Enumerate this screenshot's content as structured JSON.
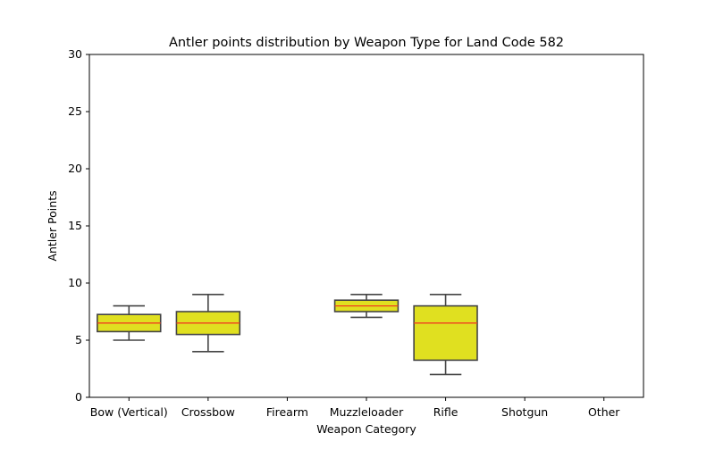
{
  "chart_data": {
    "type": "box",
    "title": "Antler points distribution by Weapon Type for Land Code 582",
    "xlabel": "Weapon Category",
    "ylabel": "Antler Points",
    "ylim": [
      0,
      30
    ],
    "yticks": [
      0,
      5,
      10,
      15,
      20,
      25,
      30
    ],
    "categories": [
      "Bow (Vertical)",
      "Crossbow",
      "Firearm",
      "Muzzleloader",
      "Rifle",
      "Shotgun",
      "Other"
    ],
    "boxes": [
      {
        "category": "Bow (Vertical)",
        "whisker_low": 5,
        "q1": 5.75,
        "median": 6.5,
        "q3": 7.25,
        "whisker_high": 8
      },
      {
        "category": "Crossbow",
        "whisker_low": 4,
        "q1": 5.5,
        "median": 6.5,
        "q3": 7.5,
        "whisker_high": 9
      },
      {
        "category": "Firearm",
        "whisker_low": null,
        "q1": null,
        "median": null,
        "q3": null,
        "whisker_high": null
      },
      {
        "category": "Muzzleloader",
        "whisker_low": 7,
        "q1": 7.5,
        "median": 8,
        "q3": 8.5,
        "whisker_high": 9
      },
      {
        "category": "Rifle",
        "whisker_low": 2,
        "q1": 3.25,
        "median": 6.5,
        "q3": 8,
        "whisker_high": 9
      },
      {
        "category": "Shotgun",
        "whisker_low": null,
        "q1": null,
        "median": null,
        "q3": null,
        "whisker_high": null
      },
      {
        "category": "Other",
        "whisker_low": null,
        "q1": null,
        "median": null,
        "q3": null,
        "whisker_high": null
      }
    ],
    "colors": {
      "box_fill": "#e0e020",
      "box_edge": "#444444",
      "median": "#f04020"
    },
    "grid": false,
    "legend": "none"
  }
}
